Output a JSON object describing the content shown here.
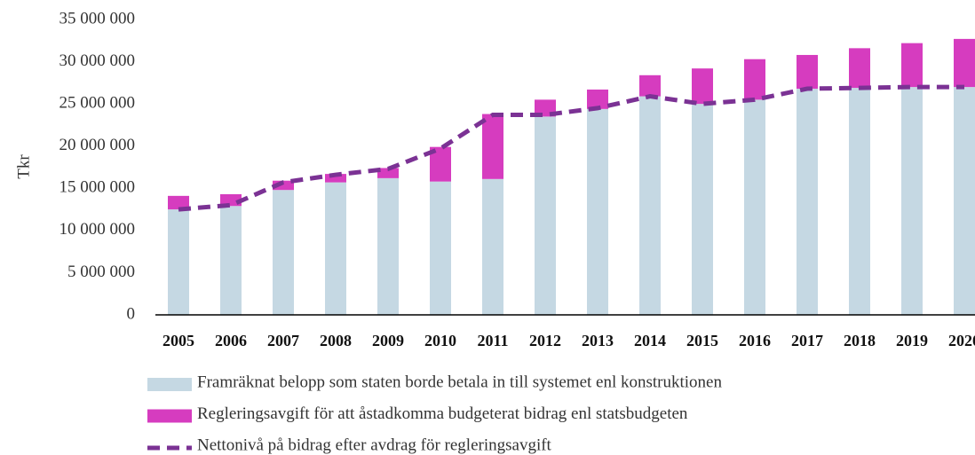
{
  "chart_data": {
    "type": "stacked-bar-line",
    "ylabel": "Tkr",
    "categories": [
      "2005",
      "2006",
      "2007",
      "2008",
      "2009",
      "2010",
      "2011",
      "2012",
      "2013",
      "2014",
      "2015",
      "2016",
      "2017",
      "2018",
      "2019",
      "2020"
    ],
    "series": [
      {
        "name": "Framräknat belopp som staten borde betala in till systemet enl konstruktionen",
        "type": "bar",
        "color": "#c5d8e3",
        "values": [
          12500000,
          12900000,
          14800000,
          15700000,
          16200000,
          15800000,
          16100000,
          23500000,
          24400000,
          25900000,
          25000000,
          25500000,
          26800000,
          26900000,
          27000000,
          27000000
        ]
      },
      {
        "name": "Regleringsavgift för att åstadkomma budgeterat bidrag enl statsbudgeten",
        "type": "bar",
        "color": "#d63cbf",
        "values": [
          1600000,
          1400000,
          1100000,
          1000000,
          1200000,
          4100000,
          7700000,
          2000000,
          2300000,
          2500000,
          4200000,
          4800000,
          4000000,
          4700000,
          5200000,
          5700000
        ]
      },
      {
        "name": "Nettonivå på bidrag efter avdrag för regleringsavgift",
        "type": "line",
        "color": "#7b3294",
        "values": [
          12500000,
          13000000,
          15700000,
          16600000,
          17300000,
          19700000,
          23700000,
          23700000,
          24500000,
          25900000,
          25000000,
          25500000,
          26800000,
          26900000,
          27000000,
          27000000
        ]
      }
    ],
    "ylim": [
      0,
      35000000
    ],
    "yticks": [
      {
        "value": 0,
        "label": "0"
      },
      {
        "value": 5000000,
        "label": "5 000 000"
      },
      {
        "value": 10000000,
        "label": "10 000 000"
      },
      {
        "value": 15000000,
        "label": "15 000 000"
      },
      {
        "value": 20000000,
        "label": "20 000 000"
      },
      {
        "value": 25000000,
        "label": "25 000 000"
      },
      {
        "value": 30000000,
        "label": "30 000 000"
      },
      {
        "value": 35000000,
        "label": "35 000 000"
      }
    ]
  }
}
